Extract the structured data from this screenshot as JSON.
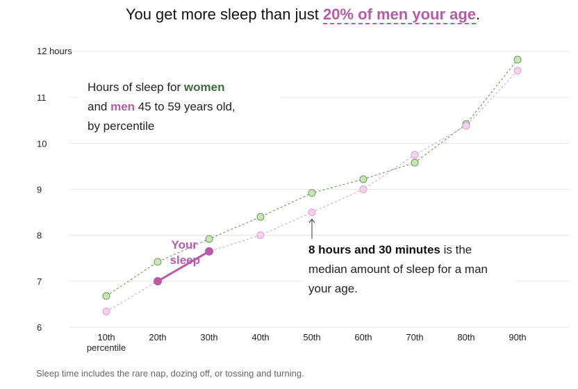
{
  "headline": {
    "prefix": "You get more sleep than just ",
    "highlight": "20% of men your age",
    "suffix": "."
  },
  "legend": {
    "line1_prefix": "Hours of sleep for ",
    "women": "women",
    "and": "and ",
    "men": "men",
    "line2_suffix": " 45 to 59 years old,",
    "line3": "by percentile"
  },
  "annotation": {
    "bold": "8 hours and 30 minutes",
    "rest": " is the median amount of sleep for a man your age."
  },
  "footnote": "Sleep time includes the rare nap, dozing off, or tossing and turning.",
  "your_sleep_label": [
    "Your",
    "sleep"
  ],
  "colors": {
    "women": "#3e6e3e",
    "women_fill": "#c8e6b4",
    "men": "#b85aa8",
    "men_fill": "#f6d0ec",
    "your_sleep": "#b85aa8",
    "grid": "#e6e6e6"
  },
  "chart_data": {
    "type": "line",
    "title": "You get more sleep than just 20% of men your age.",
    "x": [
      "10th",
      "20th",
      "30th",
      "40th",
      "50th",
      "60th",
      "70th",
      "80th",
      "90th"
    ],
    "x_tick_labels": [
      "10th",
      "20th",
      "30th",
      "40th",
      "50th",
      "60th",
      "70th",
      "80th",
      "90th"
    ],
    "x_first_tick_sub": "percentile",
    "y_tick_labels": [
      "6",
      "7",
      "8",
      "9",
      "10",
      "11",
      "12 hours"
    ],
    "ylim": [
      6,
      12
    ],
    "series": [
      {
        "name": "women",
        "values": [
          6.68,
          7.42,
          7.92,
          8.4,
          8.92,
          9.22,
          9.58,
          10.42,
          11.82
        ]
      },
      {
        "name": "men",
        "values": [
          6.34,
          7.0,
          7.65,
          8.0,
          8.5,
          9.0,
          9.75,
          10.38,
          11.58
        ]
      }
    ],
    "your_sleep": {
      "x": [
        "20th",
        "30th"
      ],
      "values": [
        7.0,
        7.65
      ]
    },
    "median_marker": {
      "x": "50th",
      "value": 8.5
    },
    "grid": true,
    "legend": "top-left"
  }
}
